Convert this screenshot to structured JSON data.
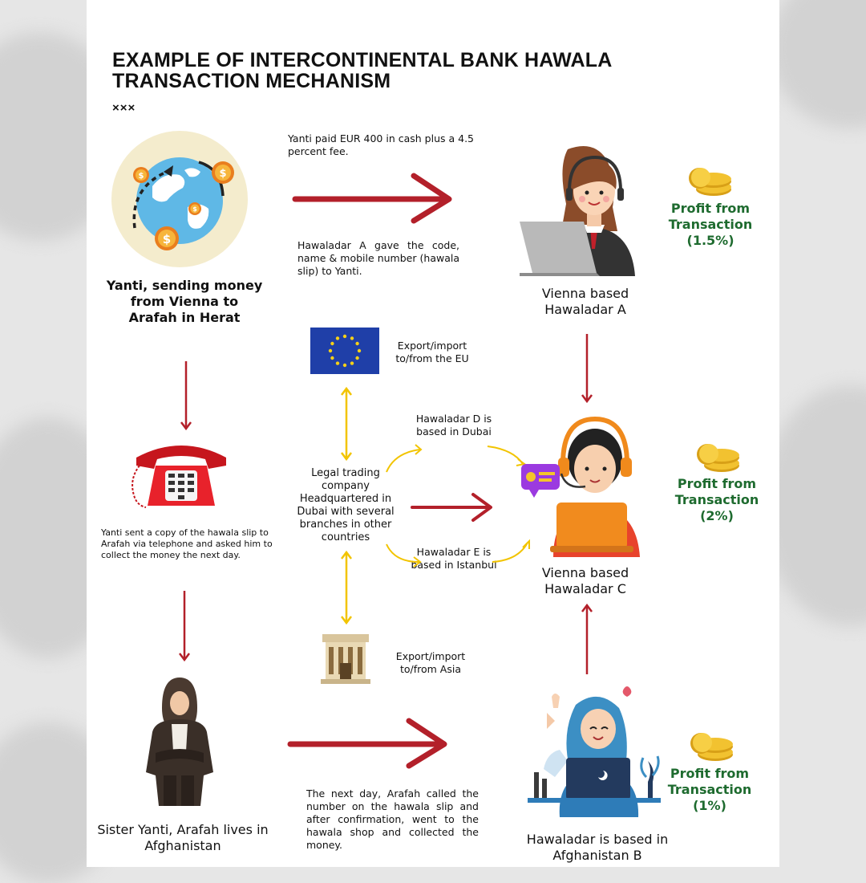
{
  "title": "EXAMPLE OF INTERCONTINENTAL BANK HAWALA TRANSACTION MECHANISM",
  "title_marks": "×××",
  "colors": {
    "arrow_red": "#b3202a",
    "arrow_yellow": "#f2c400",
    "profit_green": "#1e6b2f"
  },
  "sender": {
    "label": "Yanti, sending money from Vienna to Arafah in Herat",
    "icon": "globe-money-icon"
  },
  "step_pay": {
    "text": "Yanti paid EUR 400 in cash plus a 4.5 percent fee."
  },
  "step_slip": {
    "text": "Hawaladar A gave the code, name & mobile number (hawala slip) to Yanti."
  },
  "hawaladar_a": {
    "label": "Vienna based Hawaladar A",
    "profit_label": "Profit from Transaction",
    "profit_value": "(1.5%)"
  },
  "telephone": {
    "text": "Yanti sent a copy of the hawala slip to Arafah via telephone and asked him to collect the money the next day.",
    "icon": "telephone-icon"
  },
  "eu": {
    "text": "Export/import to/from the EU",
    "icon": "eu-flag-icon"
  },
  "asia": {
    "text": "Export/import to/from Asia",
    "icon": "bank-building-icon"
  },
  "company": {
    "text": "Legal trading company Headquartered in Dubai with several branches in other countries"
  },
  "hawaladar_d": {
    "text": "Hawaladar D is based in Dubai"
  },
  "hawaladar_e": {
    "text": "Hawaladar E is based in Istanbul"
  },
  "hawaladar_c": {
    "label": "Vienna based Hawaladar C",
    "profit_label": "Profit from Transaction",
    "profit_value": "(2%)"
  },
  "receiver": {
    "label": "Sister Yanti, Arafah lives in Afghanistan",
    "icon": "woman-hijab-icon"
  },
  "step_collect": {
    "text": "The next day, Arafah called the number on the hawala slip and after confirmation, went to the hawala shop and collected the money."
  },
  "hawaladar_b": {
    "label": "Hawaladar is based in Afghanistan B",
    "profit_label": "Profit from Transaction",
    "profit_value": "(1%)"
  }
}
